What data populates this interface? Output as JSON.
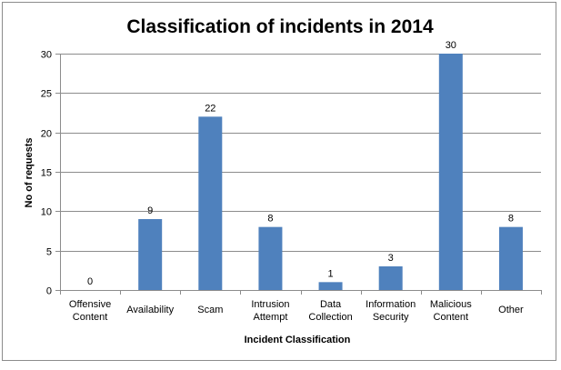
{
  "chart_data": {
    "type": "bar",
    "title": "Classification of incidents in 2014",
    "xlabel": "Incident Classification",
    "ylabel": "No of requests",
    "categories": [
      [
        "Offensive",
        "Content"
      ],
      [
        "Availability"
      ],
      [
        "Scam"
      ],
      [
        "Intrusion",
        "Attempt"
      ],
      [
        "Data",
        "Collection"
      ],
      [
        "Information",
        "Security"
      ],
      [
        "Malicious",
        "Content"
      ],
      [
        "Other"
      ]
    ],
    "values": [
      0,
      9,
      22,
      8,
      1,
      3,
      30,
      8
    ],
    "ylim": [
      0,
      30
    ],
    "yticks": [
      0,
      5,
      10,
      15,
      20,
      25,
      30
    ],
    "grid": true,
    "legend": "none",
    "bar_color": "#4f81bd",
    "grid_color": "#8c8c8c"
  }
}
